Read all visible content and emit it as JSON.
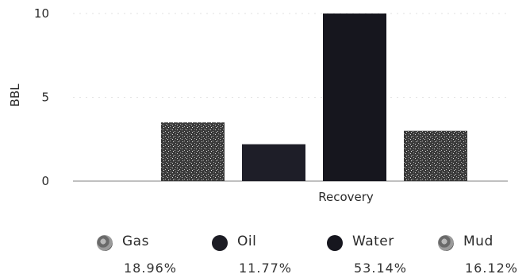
{
  "chart_data": {
    "type": "bar",
    "categories": [
      "Gas",
      "Oil",
      "Water",
      "Mud"
    ],
    "values": [
      3.5,
      2.2,
      10,
      3.0
    ],
    "xlabel": "Recovery",
    "ylabel": "BBL",
    "ylim": [
      0,
      10
    ],
    "yticks": [
      "0",
      "5",
      "10"
    ],
    "grid": true,
    "legend_position": "bottom",
    "legend": [
      {
        "name": "Gas",
        "percent": "18.96%",
        "color": "#7a7a7a"
      },
      {
        "name": "Oil",
        "percent": "11.77%",
        "color": "#1c1c24"
      },
      {
        "name": "Water",
        "percent": "53.14%",
        "color": "#16161e"
      },
      {
        "name": "Mud",
        "percent": "16.12%",
        "color": "#6c6c6c"
      }
    ],
    "bar_colors": [
      "#5a5a5a",
      "#1e1e28",
      "#16161e",
      "#5e5e5e"
    ]
  }
}
